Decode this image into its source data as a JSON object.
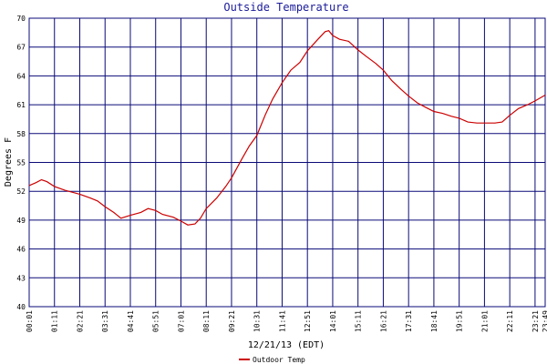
{
  "chart_data": {
    "type": "line",
    "title": "Outside Temperature",
    "xlabel": "12/21/13 (EDT)",
    "ylabel": "Degrees F",
    "ylim": [
      40,
      70
    ],
    "yticks": [
      40,
      43,
      46,
      49,
      52,
      55,
      58,
      61,
      64,
      67,
      70
    ],
    "xticks": [
      "00:01",
      "01:11",
      "02:21",
      "03:31",
      "04:41",
      "05:51",
      "07:01",
      "08:11",
      "09:21",
      "10:31",
      "11:41",
      "12:51",
      "14:01",
      "15:11",
      "16:21",
      "17:31",
      "18:41",
      "19:51",
      "21:01",
      "22:11",
      "23:21",
      "23:49"
    ],
    "grid": true,
    "legend_position": "bottom-left",
    "series": [
      {
        "name": "Outdoor Temp",
        "color": "#cc0000",
        "points": [
          [
            "00:01",
            52.6
          ],
          [
            "00:20",
            52.9
          ],
          [
            "00:35",
            53.2
          ],
          [
            "00:50",
            53.0
          ],
          [
            "01:11",
            52.5
          ],
          [
            "01:40",
            52.1
          ],
          [
            "02:21",
            51.7
          ],
          [
            "02:50",
            51.3
          ],
          [
            "03:10",
            51.0
          ],
          [
            "03:31",
            50.4
          ],
          [
            "03:55",
            49.8
          ],
          [
            "04:15",
            49.2
          ],
          [
            "04:41",
            49.5
          ],
          [
            "05:10",
            49.8
          ],
          [
            "05:30",
            50.2
          ],
          [
            "05:51",
            50.0
          ],
          [
            "06:10",
            49.6
          ],
          [
            "06:40",
            49.3
          ],
          [
            "07:01",
            48.9
          ],
          [
            "07:20",
            48.5
          ],
          [
            "07:40",
            48.6
          ],
          [
            "07:55",
            49.2
          ],
          [
            "08:11",
            50.2
          ],
          [
            "08:40",
            51.3
          ],
          [
            "09:05",
            52.5
          ],
          [
            "09:21",
            53.4
          ],
          [
            "09:50",
            55.4
          ],
          [
            "10:10",
            56.7
          ],
          [
            "10:31",
            57.8
          ],
          [
            "10:55",
            60.0
          ],
          [
            "11:15",
            61.6
          ],
          [
            "11:41",
            63.3
          ],
          [
            "12:05",
            64.6
          ],
          [
            "12:30",
            65.4
          ],
          [
            "12:51",
            66.6
          ],
          [
            "13:20",
            67.8
          ],
          [
            "13:40",
            68.6
          ],
          [
            "13:50",
            68.7
          ],
          [
            "14:01",
            68.2
          ],
          [
            "14:20",
            67.8
          ],
          [
            "14:45",
            67.6
          ],
          [
            "15:11",
            66.7
          ],
          [
            "15:35",
            66.0
          ],
          [
            "16:00",
            65.3
          ],
          [
            "16:21",
            64.6
          ],
          [
            "16:45",
            63.5
          ],
          [
            "17:10",
            62.6
          ],
          [
            "17:31",
            61.9
          ],
          [
            "17:55",
            61.2
          ],
          [
            "18:20",
            60.7
          ],
          [
            "18:41",
            60.3
          ],
          [
            "19:05",
            60.1
          ],
          [
            "19:30",
            59.8
          ],
          [
            "19:51",
            59.6
          ],
          [
            "20:15",
            59.2
          ],
          [
            "20:40",
            59.1
          ],
          [
            "21:01",
            59.1
          ],
          [
            "21:30",
            59.1
          ],
          [
            "21:50",
            59.2
          ],
          [
            "22:11",
            59.9
          ],
          [
            "22:35",
            60.6
          ],
          [
            "23:00",
            61.0
          ],
          [
            "23:21",
            61.4
          ],
          [
            "23:49",
            62.0
          ]
        ]
      }
    ]
  }
}
